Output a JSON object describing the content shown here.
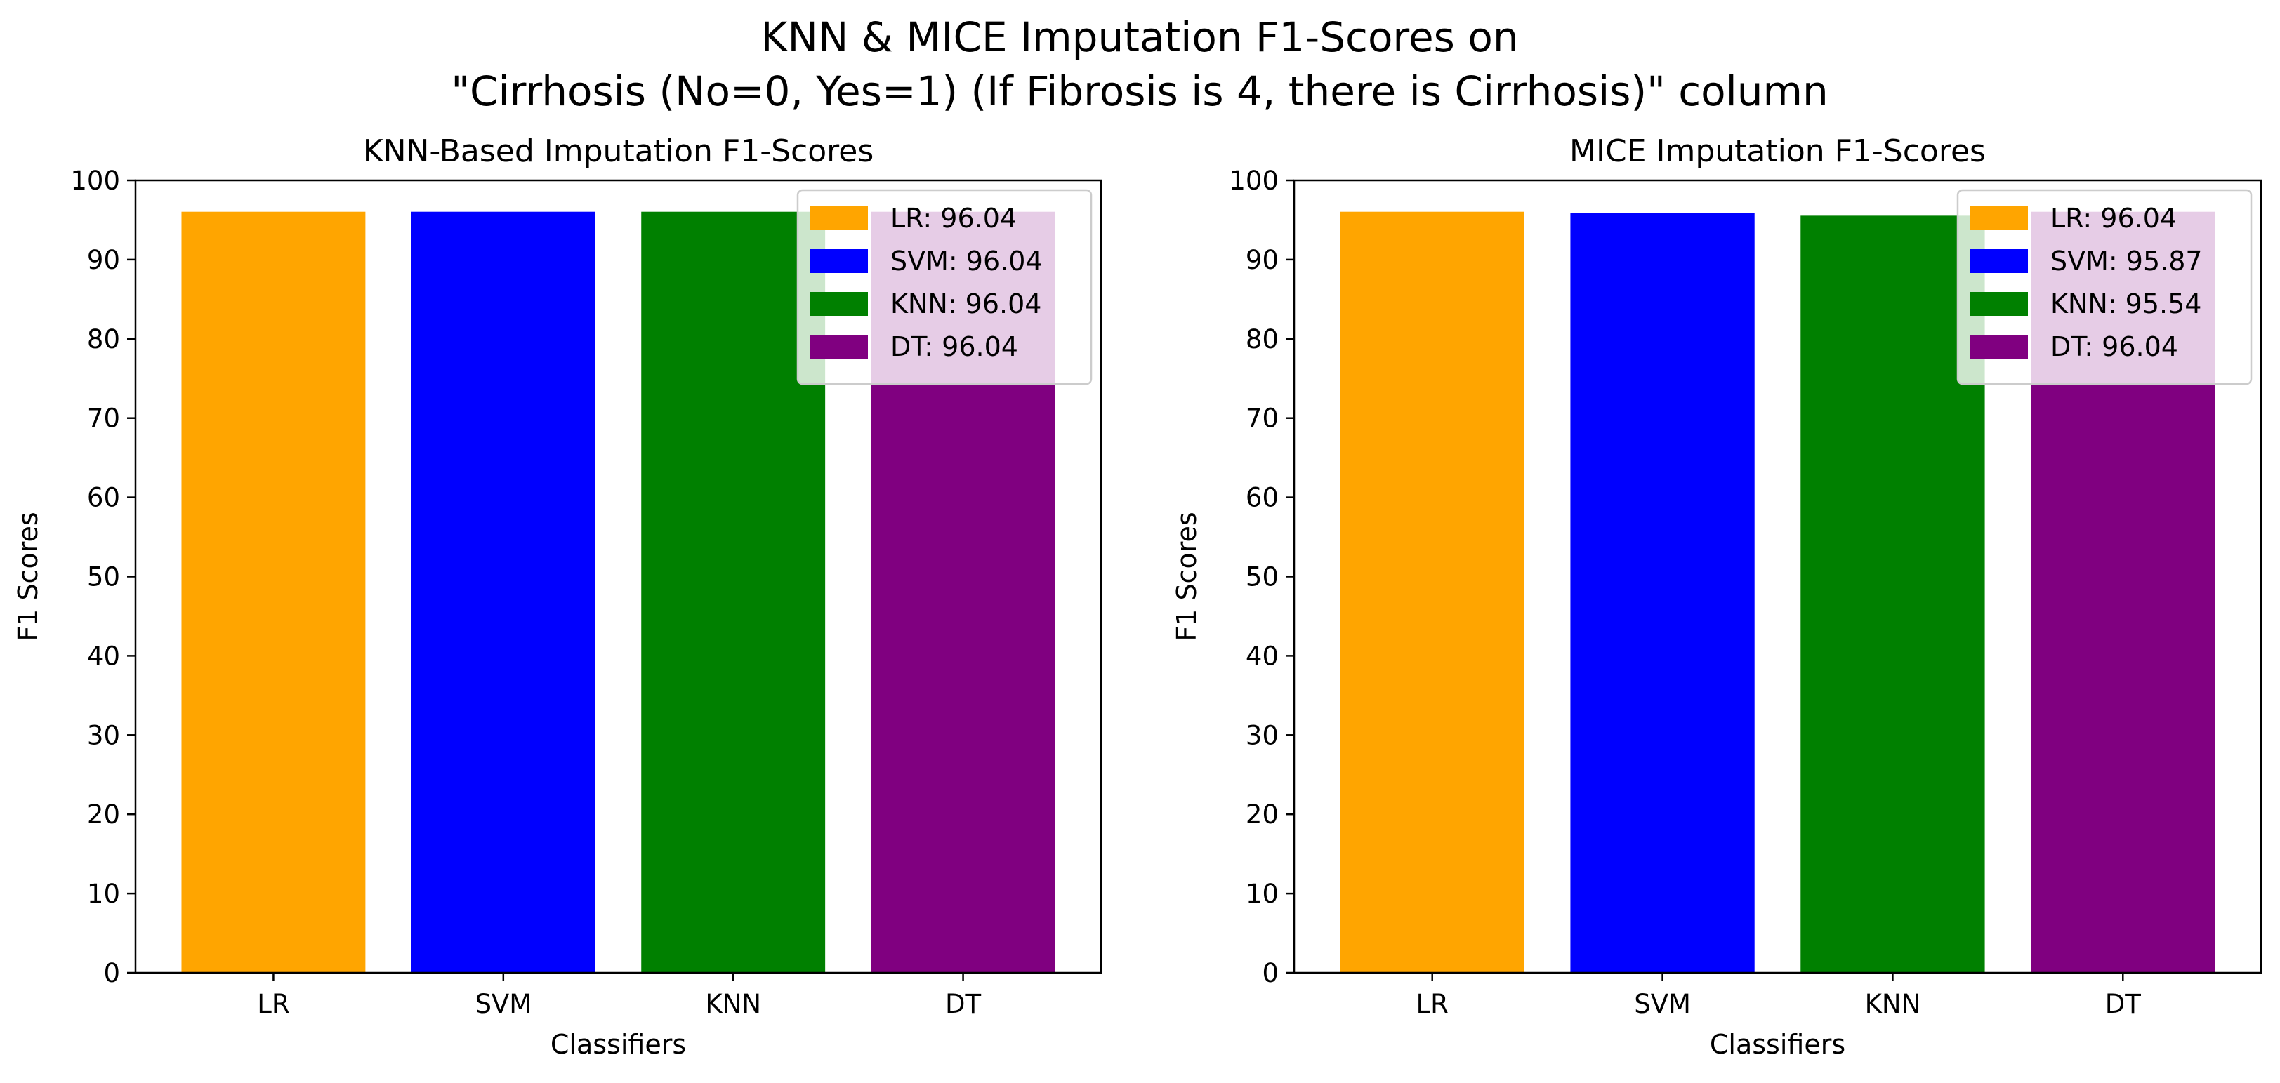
{
  "figure": {
    "title_line1": "KNN & MICE Imputation F1-Scores on",
    "title_line2": "\"Cirrhosis (No=0, Yes=1) (If Fibrosis is 4, there is Cirrhosis)\" column"
  },
  "chart_data": [
    {
      "type": "bar",
      "title": "KNN-Based Imputation F1-Scores",
      "xlabel": "Classifiers",
      "ylabel": "F1 Scores",
      "categories": [
        "LR",
        "SVM",
        "KNN",
        "DT"
      ],
      "values": [
        96.04,
        96.04,
        96.04,
        96.04
      ],
      "colors": [
        "#FFA500",
        "#0000FF",
        "#008000",
        "#800080"
      ],
      "ylim": [
        0,
        100
      ],
      "yticks": [
        0,
        10,
        20,
        30,
        40,
        50,
        60,
        70,
        80,
        90,
        100
      ],
      "grid": false,
      "legend_position": "top-right",
      "legend": [
        "LR: 96.04",
        "SVM: 96.04",
        "KNN: 96.04",
        "DT: 96.04"
      ]
    },
    {
      "type": "bar",
      "title": "MICE Imputation F1-Scores",
      "xlabel": "Classifiers",
      "ylabel": "F1 Scores",
      "categories": [
        "LR",
        "SVM",
        "KNN",
        "DT"
      ],
      "values": [
        96.04,
        95.87,
        95.54,
        96.04
      ],
      "colors": [
        "#FFA500",
        "#0000FF",
        "#008000",
        "#800080"
      ],
      "ylim": [
        0,
        100
      ],
      "yticks": [
        0,
        10,
        20,
        30,
        40,
        50,
        60,
        70,
        80,
        90,
        100
      ],
      "grid": false,
      "legend_position": "top-right",
      "legend": [
        "LR: 96.04",
        "SVM: 95.87",
        "KNN: 95.54",
        "DT: 96.04"
      ]
    }
  ]
}
